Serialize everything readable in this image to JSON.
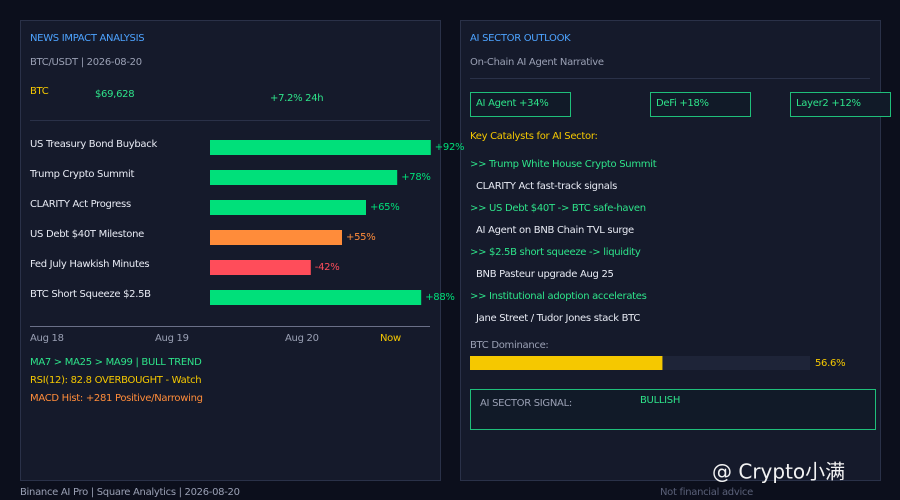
{
  "left": {
    "title": "NEWS IMPACT ANALYSIS",
    "pair": "BTC/USDT | 2026-08-20",
    "asset": "BTC",
    "price": "$69,628",
    "change": "+7.2% 24h",
    "impact": {
      "bars": [
        {
          "label": "US Treasury Bond Buyback",
          "value": 92,
          "value_label": "+92%",
          "color": "#00e07a"
        },
        {
          "label": "Trump Crypto Summit",
          "value": 78,
          "value_label": "+78%",
          "color": "#00e07a"
        },
        {
          "label": "CLARITY Act Progress",
          "value": 65,
          "value_label": "+65%",
          "color": "#00e07a"
        },
        {
          "label": "US Debt $40T Milestone",
          "value": 55,
          "value_label": "+55%",
          "color": "#ff8c3a"
        },
        {
          "label": "Fed July Hawkish Minutes",
          "value": -42,
          "value_label": "-42%",
          "color": "#ff4d5a"
        },
        {
          "label": "BTC Short Squeeze $2.5B",
          "value": 88,
          "value_label": "+88%",
          "color": "#00e07a"
        }
      ],
      "timeline": [
        "Aug 18",
        "Aug 19",
        "Aug 20",
        "Now"
      ]
    },
    "indicators": [
      {
        "text": "MA7 > MA25 > MA99 | BULL TREND",
        "color": "#2ee38a"
      },
      {
        "text": "RSI(12): 82.8 OVERBOUGHT - Watch",
        "color": "#f5c800"
      },
      {
        "text": "MACD Hist: +281 Positive/Narrowing",
        "color": "#ff8c3a"
      }
    ]
  },
  "right": {
    "title": "AI SECTOR OUTLOOK",
    "subtitle": "On-Chain AI Agent Narrative",
    "badges": [
      "AI Agent +34%",
      "DeFi +18%",
      "Layer2 +12%"
    ],
    "catalysts_title": "Key Catalysts for AI Sector:",
    "catalysts": [
      {
        "headline": ">> Trump White House Crypto Summit",
        "detail": "CLARITY Act fast-track signals"
      },
      {
        "headline": ">> US Debt $40T -> BTC safe-haven",
        "detail": "AI Agent on BNB Chain TVL surge"
      },
      {
        "headline": ">> $2.5B short squeeze -> liquidity",
        "detail": "BNB Pasteur upgrade Aug 25"
      },
      {
        "headline": ">> Institutional adoption accelerates",
        "detail": "Jane Street / Tudor Jones stack BTC"
      }
    ],
    "dominance": {
      "label": "BTC Dominance:",
      "value": 56.6,
      "value_label": "56.6%"
    },
    "signal": {
      "label": "AI SECTOR SIGNAL:",
      "value": "BULLISH"
    }
  },
  "footer": {
    "source": "Binance AI Pro | Square Analytics | 2026-08-20",
    "disclaimer": "Not financial advice",
    "watermark": "@ Crypto小满"
  }
}
